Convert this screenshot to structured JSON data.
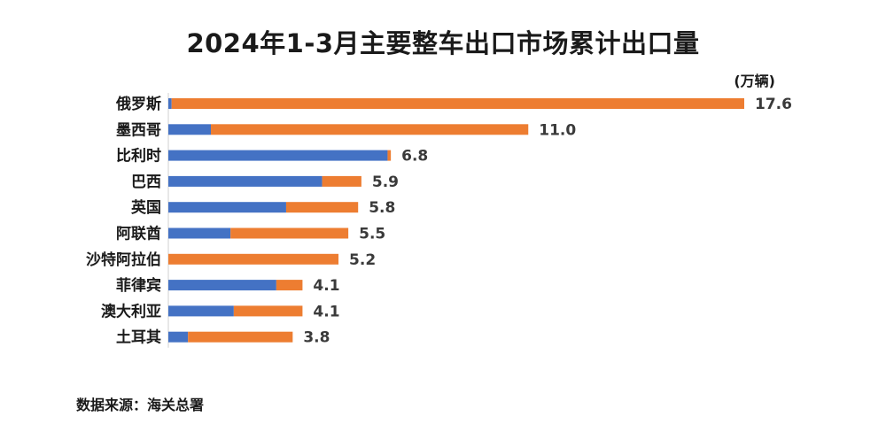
{
  "chart_data": {
    "type": "bar",
    "orientation": "horizontal",
    "stacked": true,
    "title": "2024年1-3月主要整车出口市场累计出口量",
    "unit": "(万辆)",
    "categories": [
      "俄罗斯",
      "墨西哥",
      "比利时",
      "巴西",
      "英国",
      "阿联酋",
      "沙特阿拉伯",
      "菲律宾",
      "澳大利亚",
      "土耳其"
    ],
    "totals": [
      17.6,
      11.0,
      6.8,
      5.9,
      5.8,
      5.5,
      5.2,
      4.1,
      4.1,
      3.8
    ],
    "total_labels": [
      "17.6",
      "11.0",
      "6.8",
      "5.9",
      "5.8",
      "5.5",
      "5.2",
      "4.1",
      "4.1",
      "3.8"
    ],
    "series": [
      {
        "color": "#4472c4",
        "values": [
          0.1,
          1.3,
          6.7,
          4.7,
          3.6,
          1.9,
          0.0,
          3.3,
          2.0,
          0.6
        ]
      },
      {
        "color": "#ed7d31",
        "values": [
          17.5,
          9.7,
          0.1,
          1.2,
          2.2,
          3.6,
          5.2,
          0.8,
          2.1,
          3.2
        ]
      }
    ],
    "xlim": [
      0,
      17.6
    ],
    "grid": false,
    "legend": false
  },
  "footer": {
    "source": "数据来源：海关总署"
  }
}
